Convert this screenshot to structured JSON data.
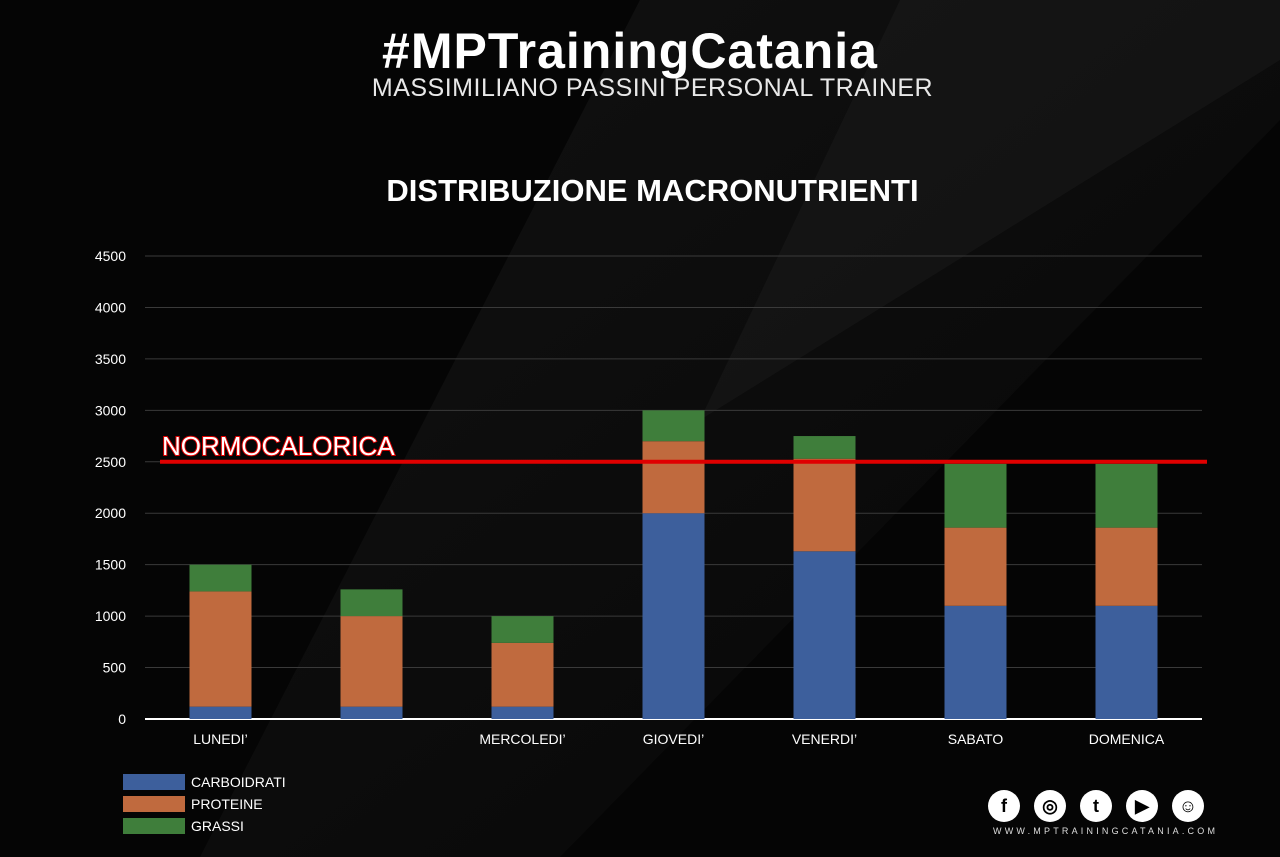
{
  "brand": {
    "title": "#MPTrainingCatania",
    "subtitle": "MASSIMILIANO PASSINI PERSONAL TRAINER",
    "website": "WWW.MPTRAININGCATANIA.COM"
  },
  "social": [
    {
      "name": "facebook-icon",
      "glyph": "f"
    },
    {
      "name": "instagram-icon",
      "glyph": "◎"
    },
    {
      "name": "twitter-icon",
      "glyph": "t"
    },
    {
      "name": "youtube-icon",
      "glyph": "▶"
    },
    {
      "name": "snapchat-icon",
      "glyph": "☺"
    }
  ],
  "chart_data": {
    "type": "bar",
    "stacked": true,
    "title": "DISTRIBUZIONE MACRONUTRIENTI",
    "categories": [
      "LUNEDI’",
      "",
      "MERCOLEDI’",
      "GIOVEDI’",
      "VENERDI’",
      "SABATO",
      "DOMENICA"
    ],
    "series": [
      {
        "name": "CARBOIDRATI",
        "color": "#3d5f9c",
        "values": [
          120,
          120,
          120,
          2000,
          1630,
          1100,
          1100
        ]
      },
      {
        "name": "PROTEINE",
        "color": "#c06a3e",
        "values": [
          1120,
          880,
          620,
          700,
          900,
          760,
          760
        ]
      },
      {
        "name": "GRASSI",
        "color": "#3f7e3b",
        "values": [
          260,
          260,
          260,
          300,
          220,
          620,
          620
        ]
      }
    ],
    "ylim": [
      0,
      4500
    ],
    "yticks": [
      0,
      500,
      1000,
      1500,
      2000,
      2500,
      3000,
      3500,
      4000,
      4500
    ],
    "grid": true,
    "legend": "bottom-left",
    "reference_line": {
      "label": "NORMOCALORICA",
      "value": 2500,
      "color": "#e00000"
    }
  }
}
